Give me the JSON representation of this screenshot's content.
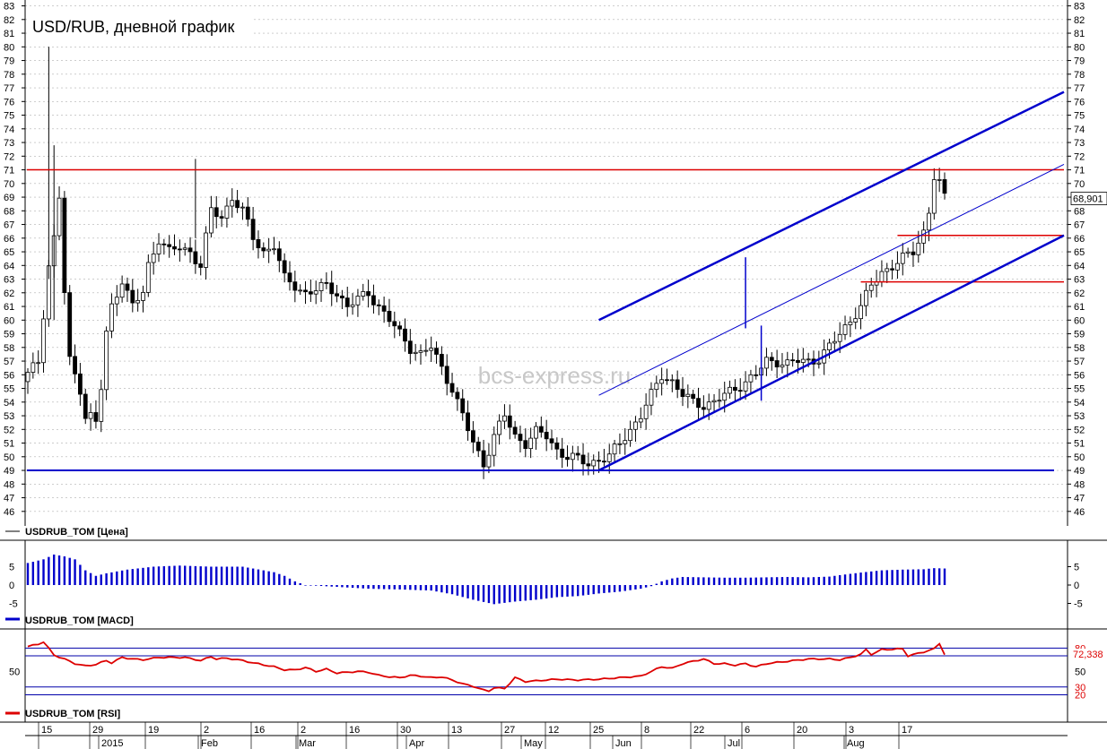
{
  "title": "USD/RUB, дневной график",
  "watermark": "bcs-express.ru",
  "colors": {
    "up_candle": "#ffffff",
    "down_candle": "#000000",
    "channel": "#0000cc",
    "level": "#dd0000",
    "macd": "#0000cc",
    "rsi": "#dd0000",
    "grid": "#b0b0b0"
  },
  "chart_data": [
    {
      "type": "candlestick",
      "series_name": "USDRUB_TOM [Цена]",
      "title": "USD/RUB, дневной график",
      "ylim": [
        45,
        83
      ],
      "yticks": [
        46,
        47,
        48,
        49,
        50,
        51,
        52,
        53,
        54,
        55,
        56,
        57,
        58,
        59,
        60,
        61,
        62,
        63,
        64,
        65,
        66,
        67,
        68,
        69,
        70,
        71,
        72,
        73,
        74,
        75,
        76,
        77,
        78,
        79,
        80,
        81,
        82,
        83
      ],
      "last_value_label": "68,901",
      "grid": true,
      "close_path": [
        [
          0,
          56
        ],
        [
          2,
          57
        ],
        [
          4,
          64
        ],
        [
          5,
          66
        ],
        [
          6,
          69
        ],
        [
          7,
          62
        ],
        [
          8,
          57
        ],
        [
          10,
          55
        ],
        [
          11,
          53
        ],
        [
          12,
          53
        ],
        [
          13,
          52.5
        ],
        [
          14,
          55
        ],
        [
          15,
          59
        ],
        [
          16,
          61
        ],
        [
          18,
          63
        ],
        [
          20,
          61
        ],
        [
          22,
          62
        ],
        [
          23,
          64
        ],
        [
          25,
          66
        ],
        [
          27,
          65
        ],
        [
          29,
          65.3
        ],
        [
          31,
          65
        ],
        [
          33,
          64
        ],
        [
          35,
          68
        ],
        [
          37,
          67.5
        ],
        [
          39,
          69
        ],
        [
          41,
          68
        ],
        [
          43,
          66
        ],
        [
          45,
          65
        ],
        [
          47,
          65.5
        ],
        [
          49,
          63
        ],
        [
          51,
          62.5
        ],
        [
          53,
          62
        ],
        [
          55,
          62.2
        ],
        [
          57,
          62.5
        ],
        [
          59,
          62
        ],
        [
          61,
          61
        ],
        [
          63,
          61.5
        ],
        [
          65,
          62
        ],
        [
          67,
          61
        ],
        [
          69,
          60
        ],
        [
          71,
          59
        ],
        [
          73,
          58
        ],
        [
          75,
          57.5
        ],
        [
          77,
          58
        ],
        [
          79,
          56.5
        ],
        [
          81,
          55
        ],
        [
          83,
          53
        ],
        [
          85,
          51
        ],
        [
          87,
          49.5
        ],
        [
          89,
          51.5
        ],
        [
          91,
          53
        ],
        [
          93,
          51.5
        ],
        [
          95,
          51
        ],
        [
          97,
          51.8
        ],
        [
          99,
          51.5
        ],
        [
          101,
          50.5
        ],
        [
          103,
          50
        ],
        [
          105,
          49.8
        ],
        [
          107,
          49.5
        ],
        [
          109,
          49.8
        ],
        [
          111,
          50
        ],
        [
          113,
          51
        ],
        [
          115,
          52
        ],
        [
          117,
          53
        ],
        [
          119,
          54.5
        ],
        [
          121,
          56
        ],
        [
          123,
          55.5
        ],
        [
          125,
          54.5
        ],
        [
          127,
          54
        ],
        [
          129,
          53.8
        ],
        [
          131,
          54
        ],
        [
          133,
          54.5
        ],
        [
          135,
          55
        ],
        [
          137,
          55.5
        ],
        [
          139,
          56
        ],
        [
          141,
          57
        ],
        [
          143,
          57
        ],
        [
          145,
          56.8
        ],
        [
          147,
          57
        ],
        [
          149,
          57
        ],
        [
          151,
          57.2
        ],
        [
          153,
          58
        ],
        [
          155,
          59
        ],
        [
          157,
          60
        ],
        [
          159,
          61
        ],
        [
          161,
          62.5
        ],
        [
          163,
          63.5
        ],
        [
          165,
          64
        ],
        [
          167,
          64.5
        ],
        [
          169,
          65
        ],
        [
          171,
          66.5
        ],
        [
          172,
          68
        ],
        [
          173,
          70.5
        ],
        [
          174,
          70
        ],
        [
          175,
          68.9
        ]
      ],
      "candle_count": 176,
      "overlay_lines": [
        {
          "name": "support-level",
          "y": 49,
          "x": [
            0,
            211
          ],
          "color": "#0000cc",
          "width": 2
        },
        {
          "name": "resistance-level",
          "y": 71,
          "x": [
            0,
            211
          ],
          "color": "#dd0000",
          "width": 1.5
        },
        {
          "name": "level-66",
          "y": 66.2,
          "x": [
            166,
            211
          ],
          "color": "#dd0000",
          "width": 1.5
        },
        {
          "name": "level-63",
          "y": 62.8,
          "x": [
            159,
            211
          ],
          "color": "#dd0000",
          "width": 1.5
        },
        {
          "name": "channel-lower",
          "x": [
            109,
            211
          ],
          "y": [
            49,
            66.2
          ],
          "color": "#0000cc",
          "width": 2.5
        },
        {
          "name": "channel-upper",
          "x": [
            109,
            211
          ],
          "y": [
            60,
            76.7
          ],
          "color": "#0000cc",
          "width": 2.5
        },
        {
          "name": "channel-middle",
          "x": [
            109,
            211
          ],
          "y": [
            54.5,
            71.4
          ],
          "color": "#0000cc",
          "width": 1
        },
        {
          "name": "channel-height-1",
          "x": [
            137,
            137
          ],
          "y": [
            59.4,
            64.6
          ],
          "color": "#0000cc",
          "width": 1.5
        },
        {
          "name": "channel-height-2",
          "x": [
            140,
            140
          ],
          "y": [
            54.1,
            59.6
          ],
          "color": "#0000cc",
          "width": 1.5
        }
      ]
    },
    {
      "type": "bar",
      "series_name": "USDRUB_TOM [MACD]",
      "ylim": [
        -6,
        9
      ],
      "yticks": [
        -5,
        0,
        5
      ],
      "values_path": [
        [
          0,
          6
        ],
        [
          3,
          7
        ],
        [
          5,
          8.3
        ],
        [
          7,
          7.8
        ],
        [
          9,
          7
        ],
        [
          11,
          4
        ],
        [
          13,
          2.5
        ],
        [
          15,
          3.2
        ],
        [
          19,
          4.2
        ],
        [
          24,
          5
        ],
        [
          29,
          5.3
        ],
        [
          35,
          5
        ],
        [
          41,
          5
        ],
        [
          43,
          4.5
        ],
        [
          47,
          3.5
        ],
        [
          49,
          2.5
        ],
        [
          51,
          1
        ],
        [
          53,
          0
        ],
        [
          59,
          -0.5
        ],
        [
          65,
          -1
        ],
        [
          71,
          -1.2
        ],
        [
          77,
          -1.5
        ],
        [
          81,
          -2.5
        ],
        [
          85,
          -4
        ],
        [
          89,
          -5.2
        ],
        [
          93,
          -4.5
        ],
        [
          97,
          -4
        ],
        [
          101,
          -3.3
        ],
        [
          105,
          -3
        ],
        [
          109,
          -2.3
        ],
        [
          113,
          -1.8
        ],
        [
          117,
          -1
        ],
        [
          119,
          -0.3
        ],
        [
          121,
          1
        ],
        [
          123,
          1.8
        ],
        [
          125,
          2.2
        ],
        [
          129,
          2.1
        ],
        [
          133,
          2
        ],
        [
          137,
          2
        ],
        [
          141,
          2.1
        ],
        [
          145,
          2.2
        ],
        [
          149,
          2.1
        ],
        [
          153,
          2.3
        ],
        [
          155,
          2.7
        ],
        [
          159,
          3.4
        ],
        [
          163,
          4
        ],
        [
          167,
          4.2
        ],
        [
          171,
          4.3
        ],
        [
          173,
          4.6
        ],
        [
          175,
          4.5
        ]
      ]
    },
    {
      "type": "line",
      "series_name": "USDRUB_TOM [RSI]",
      "ylim": [
        15,
        100
      ],
      "yticks": [
        20,
        30,
        50,
        70,
        80
      ],
      "levels": [
        20,
        30,
        70,
        80
      ],
      "last_value_label": "72,338",
      "values_path": [
        [
          0,
          82
        ],
        [
          2,
          85
        ],
        [
          3,
          88
        ],
        [
          5,
          71
        ],
        [
          7,
          66
        ],
        [
          9,
          60
        ],
        [
          11,
          57
        ],
        [
          13,
          59
        ],
        [
          15,
          64
        ],
        [
          16,
          61
        ],
        [
          18,
          68
        ],
        [
          20,
          66
        ],
        [
          22,
          65
        ],
        [
          25,
          68
        ],
        [
          30,
          68
        ],
        [
          33,
          64
        ],
        [
          35,
          69
        ],
        [
          36,
          66
        ],
        [
          38,
          67
        ],
        [
          41,
          64
        ],
        [
          43,
          61
        ],
        [
          47,
          56
        ],
        [
          49,
          52
        ],
        [
          51,
          52
        ],
        [
          53,
          55
        ],
        [
          55,
          50
        ],
        [
          57,
          53
        ],
        [
          59,
          48
        ],
        [
          61,
          49
        ],
        [
          63,
          50
        ],
        [
          65,
          49
        ],
        [
          67,
          45
        ],
        [
          69,
          43
        ],
        [
          71,
          42
        ],
        [
          73,
          45
        ],
        [
          75,
          44
        ],
        [
          77,
          42
        ],
        [
          79,
          43
        ],
        [
          81,
          39
        ],
        [
          83,
          34
        ],
        [
          85,
          31
        ],
        [
          87,
          26
        ],
        [
          88,
          25
        ],
        [
          89,
          29
        ],
        [
          91,
          28
        ],
        [
          93,
          42
        ],
        [
          95,
          37
        ],
        [
          97,
          38
        ],
        [
          101,
          40
        ],
        [
          105,
          39
        ],
        [
          109,
          40
        ],
        [
          113,
          42
        ],
        [
          117,
          44
        ],
        [
          119,
          50
        ],
        [
          121,
          56
        ],
        [
          123,
          54
        ],
        [
          125,
          60
        ],
        [
          127,
          63
        ],
        [
          129,
          66
        ],
        [
          131,
          60
        ],
        [
          133,
          60
        ],
        [
          135,
          58
        ],
        [
          137,
          60
        ],
        [
          139,
          56
        ],
        [
          141,
          60
        ],
        [
          145,
          63
        ],
        [
          149,
          66
        ],
        [
          153,
          66
        ],
        [
          155,
          65
        ],
        [
          157,
          68
        ],
        [
          159,
          72
        ],
        [
          160,
          78
        ],
        [
          161,
          72
        ],
        [
          163,
          78
        ],
        [
          167,
          79
        ],
        [
          168,
          70
        ],
        [
          171,
          75
        ],
        [
          173,
          79
        ],
        [
          174,
          86
        ],
        [
          175,
          72
        ]
      ]
    }
  ],
  "legends": {
    "price": "USDRUB_TOM [Цена]",
    "macd": "USDRUB_TOM [MACD]",
    "rsi": "USDRUB_TOM [RSI]"
  },
  "time_axis": {
    "day_ticks": [
      "15",
      "29",
      "19",
      "2",
      "16",
      "2",
      "16",
      "30",
      "13",
      "27",
      "12",
      "25",
      "8",
      "22",
      "6",
      "20",
      "3",
      "17"
    ],
    "month_ticks": [
      "2015",
      "Feb",
      "Mar",
      "Apr",
      "May",
      "Jun",
      "Jul",
      "Aug"
    ]
  }
}
